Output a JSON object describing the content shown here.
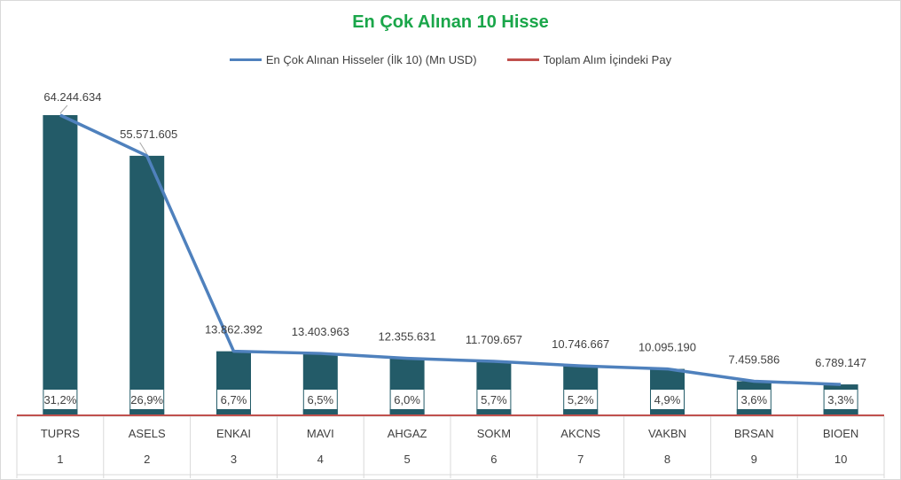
{
  "colors": {
    "bar": "#235b68",
    "line_value": "#4f81bd",
    "line_share": "#c0504d",
    "title": "#1aa64a"
  },
  "chart_data": {
    "type": "bar",
    "title": "En Çok Alınan 10 Hisse",
    "legend": [
      {
        "name": "En Çok Alınan Hisseler (İlk 10) (Mn USD)",
        "color": "#4f81bd"
      },
      {
        "name": "Toplam Alım İçindeki Pay",
        "color": "#c0504d"
      }
    ],
    "legend_position": "top",
    "categories": [
      "TUPRS",
      "ASELS",
      "ENKAI",
      "MAVI",
      "AHGAZ",
      "SOKM",
      "AKCNS",
      "VAKBN",
      "BRSAN",
      "BIOEN"
    ],
    "ranks": [
      "1",
      "2",
      "3",
      "4",
      "5",
      "6",
      "7",
      "8",
      "9",
      "10"
    ],
    "series": [
      {
        "name": "En Çok Alınan Hisseler (İlk 10) (Mn USD)",
        "kind": "bar+line",
        "values": [
          64244634,
          55571605,
          13862392,
          13403963,
          12355631,
          11709657,
          10746667,
          10095190,
          7459586,
          6789147
        ],
        "labels": [
          "64.244.634",
          "55.571.605",
          "13.862.392",
          "13.403.963",
          "12.355.631",
          "11.709.657",
          "10.746.667",
          "10.095.190",
          "7.459.586",
          "6.789.147"
        ]
      },
      {
        "name": "Toplam Alım İçindeki Pay",
        "kind": "bar+line",
        "values": [
          0.312,
          0.269,
          0.067,
          0.065,
          0.06,
          0.057,
          0.052,
          0.049,
          0.036,
          0.033
        ],
        "labels": [
          "31,2%",
          "26,9%",
          "6,7%",
          "6,5%",
          "6,0%",
          "5,7%",
          "5,2%",
          "4,9%",
          "3,6%",
          "3,3%"
        ]
      }
    ],
    "ylim": [
      0,
      64244634
    ],
    "grid": false
  }
}
